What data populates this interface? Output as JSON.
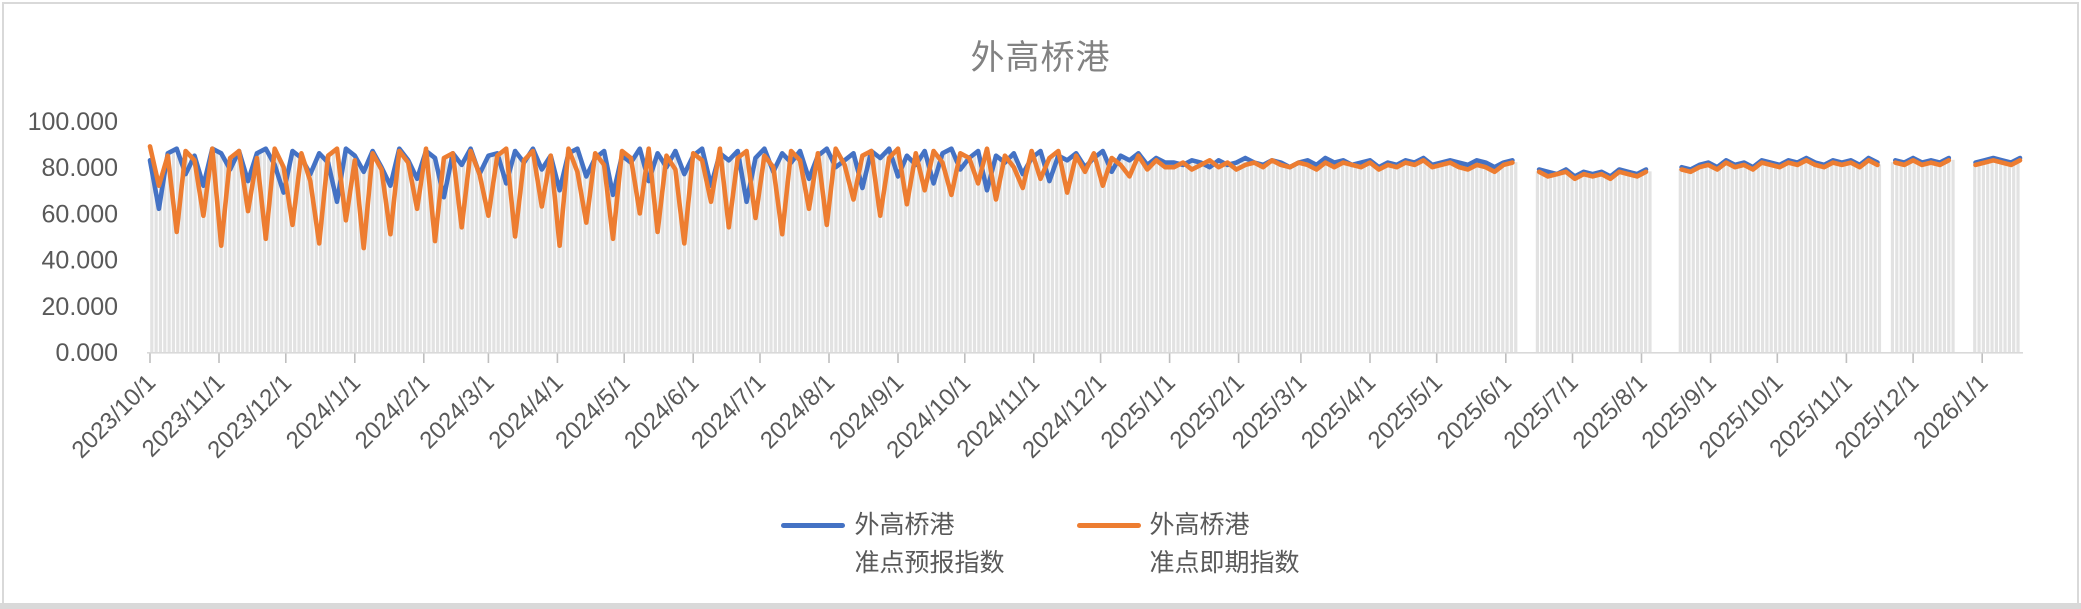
{
  "title": "外高桥港",
  "legend": {
    "items": [
      {
        "line1": "外高桥港",
        "line2": "准点预报指数",
        "color": "#4472C4"
      },
      {
        "line1": "外高桥港",
        "line2": "准点即期指数",
        "color": "#ED7D31"
      }
    ]
  },
  "colors": {
    "series_forecast_blue": "#4472C4",
    "series_spot_orange": "#ED7D31",
    "background_bar_gray": "#E2E2E2",
    "axis_text": "#595959",
    "title_text": "#828282",
    "tick_mark": "#BFBFBF",
    "axis_line": "#D9D9D9",
    "frame_border": "#D9D9D9"
  },
  "chart_data": {
    "type": "line",
    "title": "外高桥港",
    "xlabel": "",
    "ylabel": "",
    "ylim": [
      0,
      100
    ],
    "grid": false,
    "legend_position": "bottom",
    "y_tick_labels": [
      "100.000",
      "80.000",
      "60.000",
      "40.000",
      "20.000",
      "0.000"
    ],
    "x_tick_labels": [
      "2023/10/1",
      "2023/11/1",
      "2023/12/1",
      "2024/1/1",
      "2024/2/1",
      "2024/3/1",
      "2024/4/1",
      "2024/5/1",
      "2024/6/1",
      "2024/7/1",
      "2024/8/1",
      "2024/9/1",
      "2024/10/1",
      "2024/11/1",
      "2024/12/1",
      "2025/1/1",
      "2025/2/1",
      "2025/3/1",
      "2025/4/1",
      "2025/5/1",
      "2025/6/1",
      "2025/7/1",
      "2025/8/1",
      "2025/9/1",
      "2025/10/1",
      "2025/11/1",
      "2025/12/1",
      "2026/1/1"
    ],
    "start_date": "2023/10/1",
    "end_date": "2026/1/19",
    "sample_interval_days": 4,
    "observed_gaps": [
      "~2025/6/10-16",
      "~2025/8/5-20",
      "~2025/11/19",
      "~2025/12/20-28"
    ],
    "background_bars": {
      "color": "#E2E2E2",
      "description": "dense light-gray daily columns reaching up to the line envelope"
    },
    "series": [
      {
        "name": "外高桥港准点预报指数",
        "color": "#4472C4",
        "values": [
          83,
          62,
          86,
          88,
          77,
          85,
          72,
          88,
          86,
          79,
          87,
          74,
          86,
          88,
          81,
          69,
          87,
          84,
          77,
          86,
          82,
          65,
          88,
          85,
          78,
          87,
          80,
          72,
          88,
          83,
          75,
          87,
          84,
          67,
          86,
          81,
          88,
          77,
          85,
          86,
          73,
          87,
          82,
          88,
          79,
          85,
          70,
          86,
          88,
          76,
          84,
          87,
          68,
          85,
          82,
          88,
          74,
          86,
          80,
          87,
          77,
          85,
          88,
          72,
          86,
          83,
          87,
          65,
          84,
          88,
          78,
          86,
          82,
          87,
          75,
          85,
          88,
          80,
          83,
          86,
          71,
          87,
          84,
          88,
          76,
          85,
          81,
          87,
          73,
          86,
          88,
          79,
          84,
          87,
          70,
          85,
          82,
          86,
          77,
          84,
          87,
          74,
          85,
          83,
          86,
          80,
          84,
          87,
          78,
          85,
          83,
          86,
          81,
          84,
          82,
          82,
          81,
          83,
          82,
          80,
          83,
          81,
          82,
          84,
          82,
          81,
          83,
          82,
          80,
          82,
          83,
          81,
          84,
          82,
          83,
          81,
          82,
          83,
          80,
          82,
          81,
          83,
          82,
          84,
          81,
          82,
          83,
          82,
          81,
          83,
          82,
          80,
          82,
          83,
          null,
          null,
          79,
          78,
          77,
          79,
          76,
          78,
          77,
          78,
          76,
          79,
          78,
          77,
          79,
          null,
          null,
          null,
          80,
          79,
          81,
          82,
          80,
          83,
          81,
          82,
          80,
          83,
          82,
          81,
          83,
          82,
          84,
          82,
          81,
          83,
          82,
          83,
          81,
          84,
          82,
          null,
          83,
          82,
          84,
          82,
          83,
          82,
          84,
          null,
          null,
          82,
          83,
          84,
          83,
          82,
          84
        ]
      },
      {
        "name": "外高桥港准点即期指数",
        "color": "#ED7D31",
        "values": [
          89,
          72,
          85,
          52,
          87,
          83,
          59,
          88,
          46,
          84,
          87,
          61,
          84,
          49,
          88,
          80,
          55,
          86,
          74,
          47,
          85,
          88,
          57,
          83,
          45,
          86,
          79,
          51,
          87,
          82,
          62,
          88,
          48,
          84,
          86,
          54,
          87,
          77,
          59,
          85,
          88,
          50,
          83,
          87,
          63,
          85,
          46,
          88,
          78,
          56,
          86,
          81,
          49,
          87,
          84,
          60,
          88,
          52,
          85,
          79,
          47,
          86,
          83,
          65,
          88,
          54,
          84,
          87,
          58,
          85,
          80,
          51,
          87,
          83,
          62,
          86,
          55,
          88,
          81,
          66,
          85,
          87,
          59,
          84,
          88,
          64,
          86,
          70,
          87,
          82,
          68,
          86,
          84,
          73,
          88,
          66,
          85,
          80,
          71,
          87,
          75,
          84,
          87,
          69,
          85,
          78,
          86,
          72,
          84,
          81,
          76,
          85,
          79,
          83,
          80,
          80,
          82,
          79,
          81,
          83,
          80,
          82,
          79,
          81,
          82,
          80,
          83,
          81,
          80,
          82,
          81,
          79,
          82,
          80,
          82,
          81,
          80,
          82,
          79,
          81,
          80,
          82,
          81,
          83,
          80,
          81,
          82,
          80,
          79,
          81,
          80,
          78,
          81,
          82,
          null,
          null,
          78,
          76,
          77,
          78,
          75,
          77,
          76,
          77,
          75,
          78,
          77,
          76,
          78,
          null,
          null,
          null,
          79,
          78,
          80,
          81,
          79,
          82,
          80,
          81,
          79,
          82,
          81,
          80,
          82,
          81,
          83,
          81,
          80,
          82,
          81,
          82,
          80,
          83,
          81,
          null,
          82,
          81,
          83,
          81,
          82,
          81,
          83,
          null,
          null,
          81,
          82,
          83,
          82,
          81,
          83
        ]
      }
    ]
  }
}
